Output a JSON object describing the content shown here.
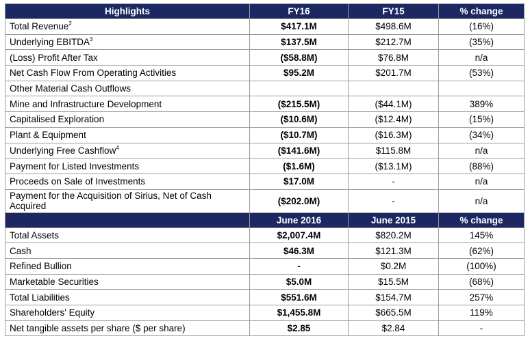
{
  "header1": {
    "c0": "Highlights",
    "c1": "FY16",
    "c2": "FY15",
    "c3": "% change"
  },
  "rows1": [
    {
      "label": "Total Revenue",
      "sup": "2",
      "fy16": "$417.1M",
      "fy15": "$498.6M",
      "change": "(16%)"
    },
    {
      "label": "Underlying EBITDA",
      "sup": "3",
      "fy16": "$137.5M",
      "fy15": "$212.7M",
      "change": "(35%)"
    },
    {
      "label": "(Loss) Profit After Tax",
      "sup": "",
      "fy16": "($58.8M)",
      "fy15": "$76.8M",
      "change": "n/a"
    },
    {
      "label": "Net Cash Flow From Operating Activities",
      "sup": "",
      "fy16": "$95.2M",
      "fy15": "$201.7M",
      "change": "(53%)"
    },
    {
      "label": "Other Material Cash Outflows",
      "sup": "",
      "fy16": "",
      "fy15": "",
      "change": ""
    },
    {
      "label": "Mine and Infrastructure Development",
      "sup": "",
      "fy16": "($215.5M)",
      "fy15": "($44.1M)",
      "change": "389%"
    },
    {
      "label": "Capitalised Exploration",
      "sup": "",
      "fy16": "($10.6M)",
      "fy15": "($12.4M)",
      "change": "(15%)"
    },
    {
      "label": "Plant & Equipment",
      "sup": "",
      "fy16": "($10.7M)",
      "fy15": "($16.3M)",
      "change": "(34%)"
    },
    {
      "label": "Underlying Free Cashflow",
      "sup": "4",
      "fy16": "($141.6M)",
      "fy15": "$115.8M",
      "change": "n/a"
    },
    {
      "label": "Payment for Listed Investments",
      "sup": "",
      "fy16": "($1.6M)",
      "fy15": "($13.1M)",
      "change": "(88%)"
    },
    {
      "label": "Proceeds on Sale of Investments",
      "sup": "",
      "fy16": "$17.0M",
      "fy15": "-",
      "change": "n/a"
    },
    {
      "label": "Payment for the Acquisition of Sirius, Net of Cash Acquired",
      "sup": "",
      "fy16": "($202.0M)",
      "fy15": "-",
      "change": "n/a"
    }
  ],
  "header2": {
    "c0": "",
    "c1": "June 2016",
    "c2": "June 2015",
    "c3": "% change"
  },
  "rows2": [
    {
      "label": "Total Assets",
      "jun16": "$2,007.4M",
      "jun15": "$820.2M",
      "change": "145%"
    },
    {
      "label": "Cash",
      "jun16": "$46.3M",
      "jun15": "$121.3M",
      "change": "(62%)"
    },
    {
      "label": "Refined Bullion",
      "jun16": "-",
      "jun15": "$0.2M",
      "change": "(100%)"
    },
    {
      "label": "Marketable Securities",
      "jun16": "$5.0M",
      "jun15": "$15.5M",
      "change": "(68%)"
    },
    {
      "label": "Total Liabilities",
      "jun16": "$551.6M",
      "jun15": "$154.7M",
      "change": "257%"
    },
    {
      "label": "Shareholders' Equity",
      "jun16": "$1,455.8M",
      "jun15": "$665.5M",
      "change": "119%"
    },
    {
      "label": "Net tangible assets per share ($ per share)",
      "jun16": "$2.85",
      "jun15": "$2.84",
      "change": "-"
    }
  ]
}
